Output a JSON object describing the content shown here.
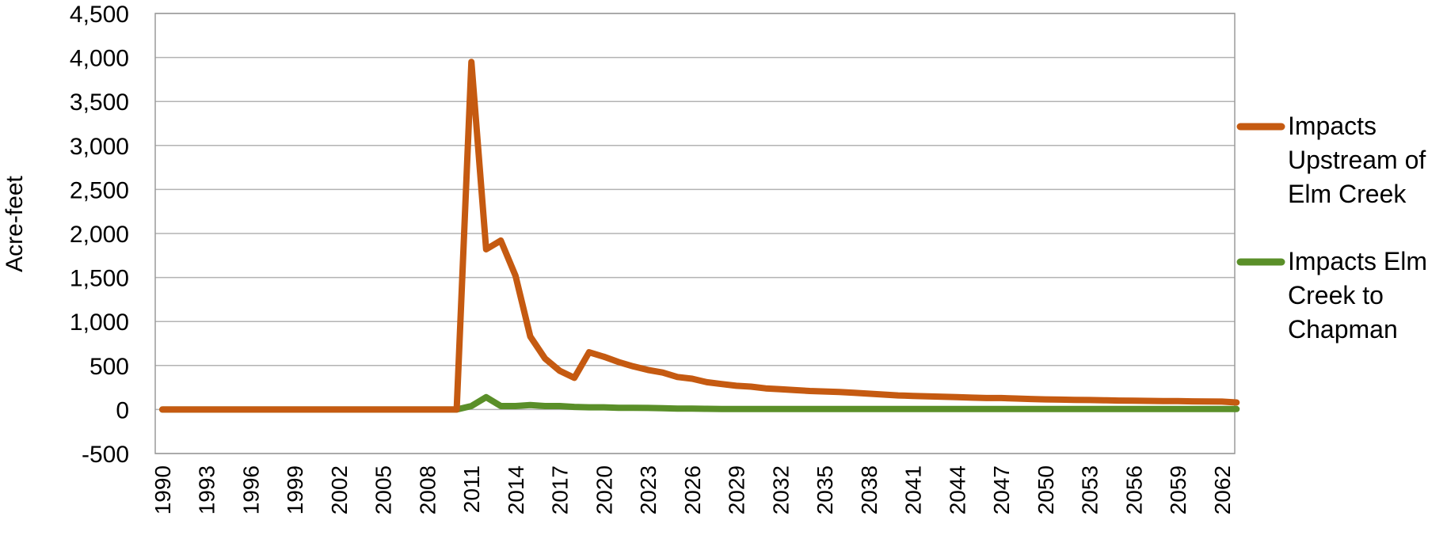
{
  "chart_data": {
    "type": "line",
    "title": "",
    "xlabel": "",
    "ylabel": "Acre-feet",
    "ylim": [
      -500,
      4500
    ],
    "yticks": [
      4500,
      4000,
      3500,
      3000,
      2500,
      2000,
      1500,
      1000,
      500,
      0,
      -500
    ],
    "ytick_labels": [
      "4,500",
      "4,000",
      "3,500",
      "3,000",
      "2,500",
      "2,000",
      "1,500",
      "1,000",
      "500",
      "0",
      "-500"
    ],
    "x_start": 1990,
    "x_end": 2063,
    "x_tick_labels": [
      "1990",
      "1993",
      "1996",
      "1999",
      "2002",
      "2005",
      "2008",
      "2011",
      "2014",
      "2017",
      "2020",
      "2023",
      "2026",
      "2029",
      "2032",
      "2035",
      "2038",
      "2041",
      "2044",
      "2047",
      "2050",
      "2053",
      "2056",
      "2059",
      "2062"
    ],
    "grid": true,
    "legend_position": "right",
    "series": [
      {
        "name": "Impacts Upstream of Elm Creek",
        "name_lines": [
          "Impacts",
          "Upstream of",
          "Elm Creek"
        ],
        "color": "#c55a11",
        "x": [
          1990,
          2010,
          2011,
          2012,
          2013,
          2014,
          2015,
          2016,
          2017,
          2018,
          2019,
          2020,
          2021,
          2022,
          2023,
          2024,
          2025,
          2026,
          2027,
          2028,
          2029,
          2030,
          2031,
          2032,
          2033,
          2034,
          2035,
          2036,
          2037,
          2038,
          2039,
          2040,
          2041,
          2042,
          2043,
          2044,
          2045,
          2046,
          2047,
          2048,
          2049,
          2050,
          2051,
          2052,
          2053,
          2054,
          2055,
          2056,
          2057,
          2058,
          2059,
          2060,
          2061,
          2062,
          2063
        ],
        "values": [
          0,
          0,
          3950,
          1820,
          1920,
          1520,
          830,
          580,
          440,
          360,
          650,
          600,
          540,
          490,
          450,
          420,
          370,
          350,
          310,
          290,
          270,
          260,
          240,
          230,
          220,
          210,
          205,
          200,
          190,
          180,
          170,
          160,
          155,
          150,
          145,
          140,
          135,
          130,
          130,
          125,
          120,
          115,
          112,
          110,
          108,
          105,
          102,
          100,
          98,
          96,
          95,
          93,
          92,
          90,
          80
        ]
      },
      {
        "name": "Impacts Elm Creek to Chapman",
        "name_lines": [
          "Impacts Elm",
          "Creek to",
          "Chapman"
        ],
        "color": "#5a8f29",
        "x": [
          1990,
          2010,
          2011,
          2012,
          2013,
          2014,
          2015,
          2016,
          2017,
          2018,
          2019,
          2020,
          2021,
          2022,
          2023,
          2024,
          2025,
          2026,
          2027,
          2028,
          2029,
          2030,
          2031,
          2032,
          2033,
          2034,
          2035,
          2036,
          2037,
          2038,
          2039,
          2040,
          2041,
          2042,
          2043,
          2044,
          2045,
          2046,
          2047,
          2048,
          2049,
          2050,
          2051,
          2052,
          2053,
          2054,
          2055,
          2056,
          2057,
          2058,
          2059,
          2060,
          2061,
          2062,
          2063
        ],
        "values": [
          0,
          0,
          40,
          140,
          40,
          40,
          50,
          40,
          40,
          30,
          25,
          25,
          20,
          20,
          18,
          15,
          10,
          10,
          8,
          5,
          5,
          5,
          5,
          5,
          5,
          5,
          5,
          5,
          5,
          5,
          5,
          5,
          5,
          5,
          5,
          5,
          5,
          5,
          5,
          5,
          5,
          5,
          5,
          5,
          5,
          5,
          5,
          5,
          5,
          5,
          5,
          5,
          5,
          5,
          5
        ]
      }
    ]
  }
}
